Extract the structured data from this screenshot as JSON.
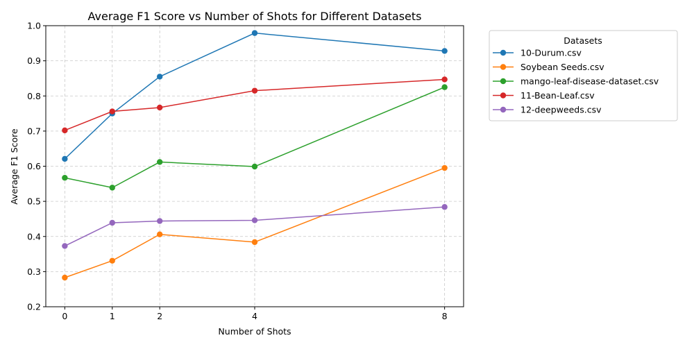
{
  "chart_data": {
    "type": "line",
    "title": "Average F1 Score vs Number of Shots for Different Datasets",
    "xlabel": "Number of Shots",
    "ylabel": "Average F1 Score",
    "x": [
      0,
      1,
      2,
      4,
      8
    ],
    "xticks": [
      "0",
      "1",
      "2",
      "4",
      "8"
    ],
    "ylim": [
      0.2,
      1.0
    ],
    "yticks": [
      "0.2",
      "0.3",
      "0.4",
      "0.5",
      "0.6",
      "0.7",
      "0.8",
      "0.9",
      "1.0"
    ],
    "grid": true,
    "legend_title": "Datasets",
    "legend_position": "outside-right",
    "series": [
      {
        "name": "10-Durum.csv",
        "color": "#1f77b4",
        "values": [
          0.621,
          0.75,
          0.855,
          0.979,
          0.928
        ]
      },
      {
        "name": "Soybean Seeds.csv",
        "color": "#ff7f0e",
        "values": [
          0.283,
          0.331,
          0.406,
          0.384,
          0.595
        ]
      },
      {
        "name": "mango-leaf-disease-dataset.csv",
        "color": "#2ca02c",
        "values": [
          0.567,
          0.539,
          0.612,
          0.599,
          0.825
        ]
      },
      {
        "name": "11-Bean-Leaf.csv",
        "color": "#d62728",
        "values": [
          0.702,
          0.756,
          0.767,
          0.815,
          0.847
        ]
      },
      {
        "name": "12-deepweeds.csv",
        "color": "#9467bd",
        "values": [
          0.373,
          0.439,
          0.444,
          0.446,
          0.484
        ]
      }
    ]
  }
}
